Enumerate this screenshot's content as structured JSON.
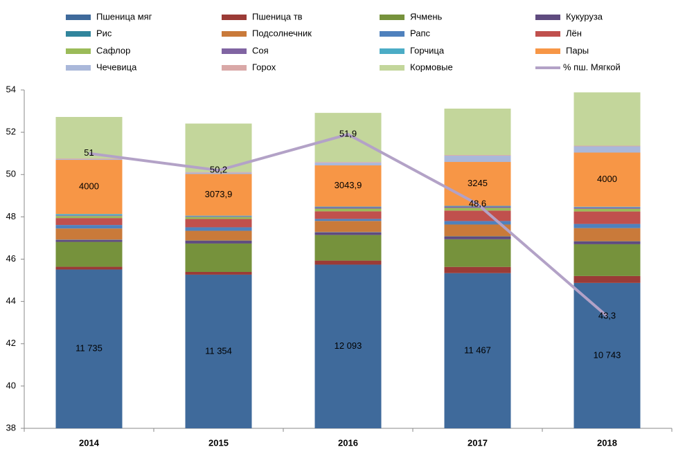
{
  "chart_data": {
    "type": "stacked_bar_line",
    "categories": [
      "2014",
      "2015",
      "2016",
      "2017",
      "2018"
    ],
    "ylim": [
      38,
      54
    ],
    "yticks": [
      38,
      40,
      42,
      44,
      46,
      48,
      50,
      52,
      54
    ],
    "y2lim": [
      0,
      25000
    ],
    "series": [
      {
        "name": "Пшеница мяг",
        "color": "#3f6a9b",
        "axis": "y2",
        "values": [
          11735,
          11354,
          12093,
          11467,
          10743
        ],
        "value_labels": [
          "11 735",
          "11 354",
          "12 093",
          "11 467",
          "10 743"
        ]
      },
      {
        "name": "Пшеница тв",
        "color": "#9b3b36",
        "axis": "y2",
        "values": [
          200,
          200,
          300,
          460,
          510
        ]
      },
      {
        "name": "Ячмень",
        "color": "#76923c",
        "axis": "y2",
        "values": [
          1840,
          2100,
          1890,
          2040,
          2350
        ]
      },
      {
        "name": "Кукуруза",
        "color": "#5f4b7f",
        "axis": "y2",
        "values": [
          150,
          200,
          200,
          200,
          200
        ]
      },
      {
        "name": "Рис",
        "color": "#31859c",
        "axis": "y2",
        "values": [
          20,
          20,
          20,
          20,
          20
        ]
      },
      {
        "name": "Подсолнечник",
        "color": "#c97a3a",
        "axis": "y2",
        "values": [
          820,
          720,
          820,
          870,
          970
        ]
      },
      {
        "name": "Рапс",
        "color": "#4f81bd",
        "axis": "y2",
        "values": [
          260,
          260,
          150,
          260,
          310
        ]
      },
      {
        "name": "Лён",
        "color": "#c0504d",
        "axis": "y2",
        "values": [
          510,
          610,
          560,
          770,
          920
        ]
      },
      {
        "name": "Сафлор",
        "color": "#9bbb59",
        "axis": "y2",
        "values": [
          150,
          150,
          200,
          200,
          200
        ]
      },
      {
        "name": "Соя",
        "color": "#8064a2",
        "axis": "y2",
        "values": [
          50,
          50,
          100,
          100,
          100
        ]
      },
      {
        "name": "Горчица",
        "color": "#4bacc6",
        "axis": "y2",
        "values": [
          100,
          50,
          50,
          50,
          50
        ]
      },
      {
        "name": "Пары",
        "color": "#f79646",
        "axis": "y2",
        "values": [
          4000,
          3073.9,
          3043.9,
          3245,
          4000
        ],
        "value_labels": [
          "4000",
          "3073,9",
          "3043,9",
          "3245",
          "4000"
        ]
      },
      {
        "name": "Чечевица",
        "color": "#aab8da",
        "axis": "y2",
        "values": [
          50,
          100,
          200,
          460,
          460
        ]
      },
      {
        "name": "Горох",
        "color": "#d9a8a7",
        "axis": "y2",
        "values": [
          50,
          50,
          50,
          50,
          50
        ]
      },
      {
        "name": "Кормовые",
        "color": "#c3d69b",
        "axis": "y2",
        "values": [
          3070,
          3580,
          3630,
          3430,
          3940
        ]
      },
      {
        "name": "% пш. Мягкой",
        "color": "#b3a2c7",
        "axis": "y",
        "line": true,
        "values": [
          51,
          50.2,
          51.9,
          48.6,
          43.3
        ],
        "value_labels": [
          "51",
          "50,2",
          "51,9",
          "48,6",
          "43,3"
        ]
      }
    ]
  }
}
